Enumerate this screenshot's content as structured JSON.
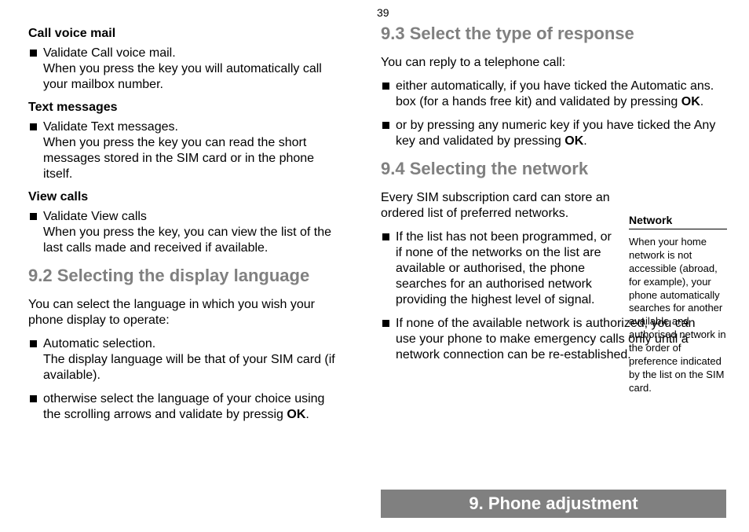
{
  "page_number": "39",
  "left": {
    "sub1_title": "Call voice mail",
    "sub1_bullet": "Validate Call voice mail.\nWhen you press the key you will automatically call your mailbox number.",
    "sub2_title": "Text  messages",
    "sub2_bullet": "Validate Text messages.\nWhen you press the key you can read the short messages stored in the SIM card or in the phone itself.",
    "sub3_title": "View calls",
    "sub3_bullet": "Validate View calls\nWhen you press the key, you can view the list of the last calls made and received if available.",
    "sec92_title": "9.2  Selecting the display language",
    "sec92_intro": "You can select the language in which you wish your phone display to operate:",
    "sec92_b1": "Automatic selection.\nThe display language will be that of your SIM card (if available).",
    "sec92_b2_pre": "otherwise select the language of your choice using the scrolling arrows and validate by pressig ",
    "sec92_b2_bold": "OK",
    "sec92_b2_post": "."
  },
  "right": {
    "sec93_title": "9.3  Select the type of response",
    "sec93_intro": "You can reply to a telephone call:",
    "sec93_b1_pre": "either automatically, if you have ticked the Automatic ans. box (for a hands free kit) and validated by pressing ",
    "sec93_b1_bold": "OK",
    "sec93_b1_post": ".",
    "sec93_b2_pre": "or by pressing any numeric key if you have ticked the Any key and validated by pressing ",
    "sec93_b2_bold": "OK",
    "sec93_b2_post": ".",
    "sec94_title": "9.4  Selecting the network",
    "sec94_intro": "Every SIM subscription card can store an ordered list of preferred networks.",
    "sec94_b1": "If the list has not been programmed, or if none of the networks on the list are available or authorised, the phone searches for an authorised network providing the highest level of signal.",
    "sec94_b2": "If none of the available network is authorized, you can use your phone to make emergency calls only until a network connection can be re-established."
  },
  "sidebar": {
    "title": "Network",
    "body": "When your home network is not accessible (abroad, for example), your phone automatically searches for another available and authorised network in the order of preference indicated by the list on the SIM card."
  },
  "chapter": "9. Phone adjustment"
}
